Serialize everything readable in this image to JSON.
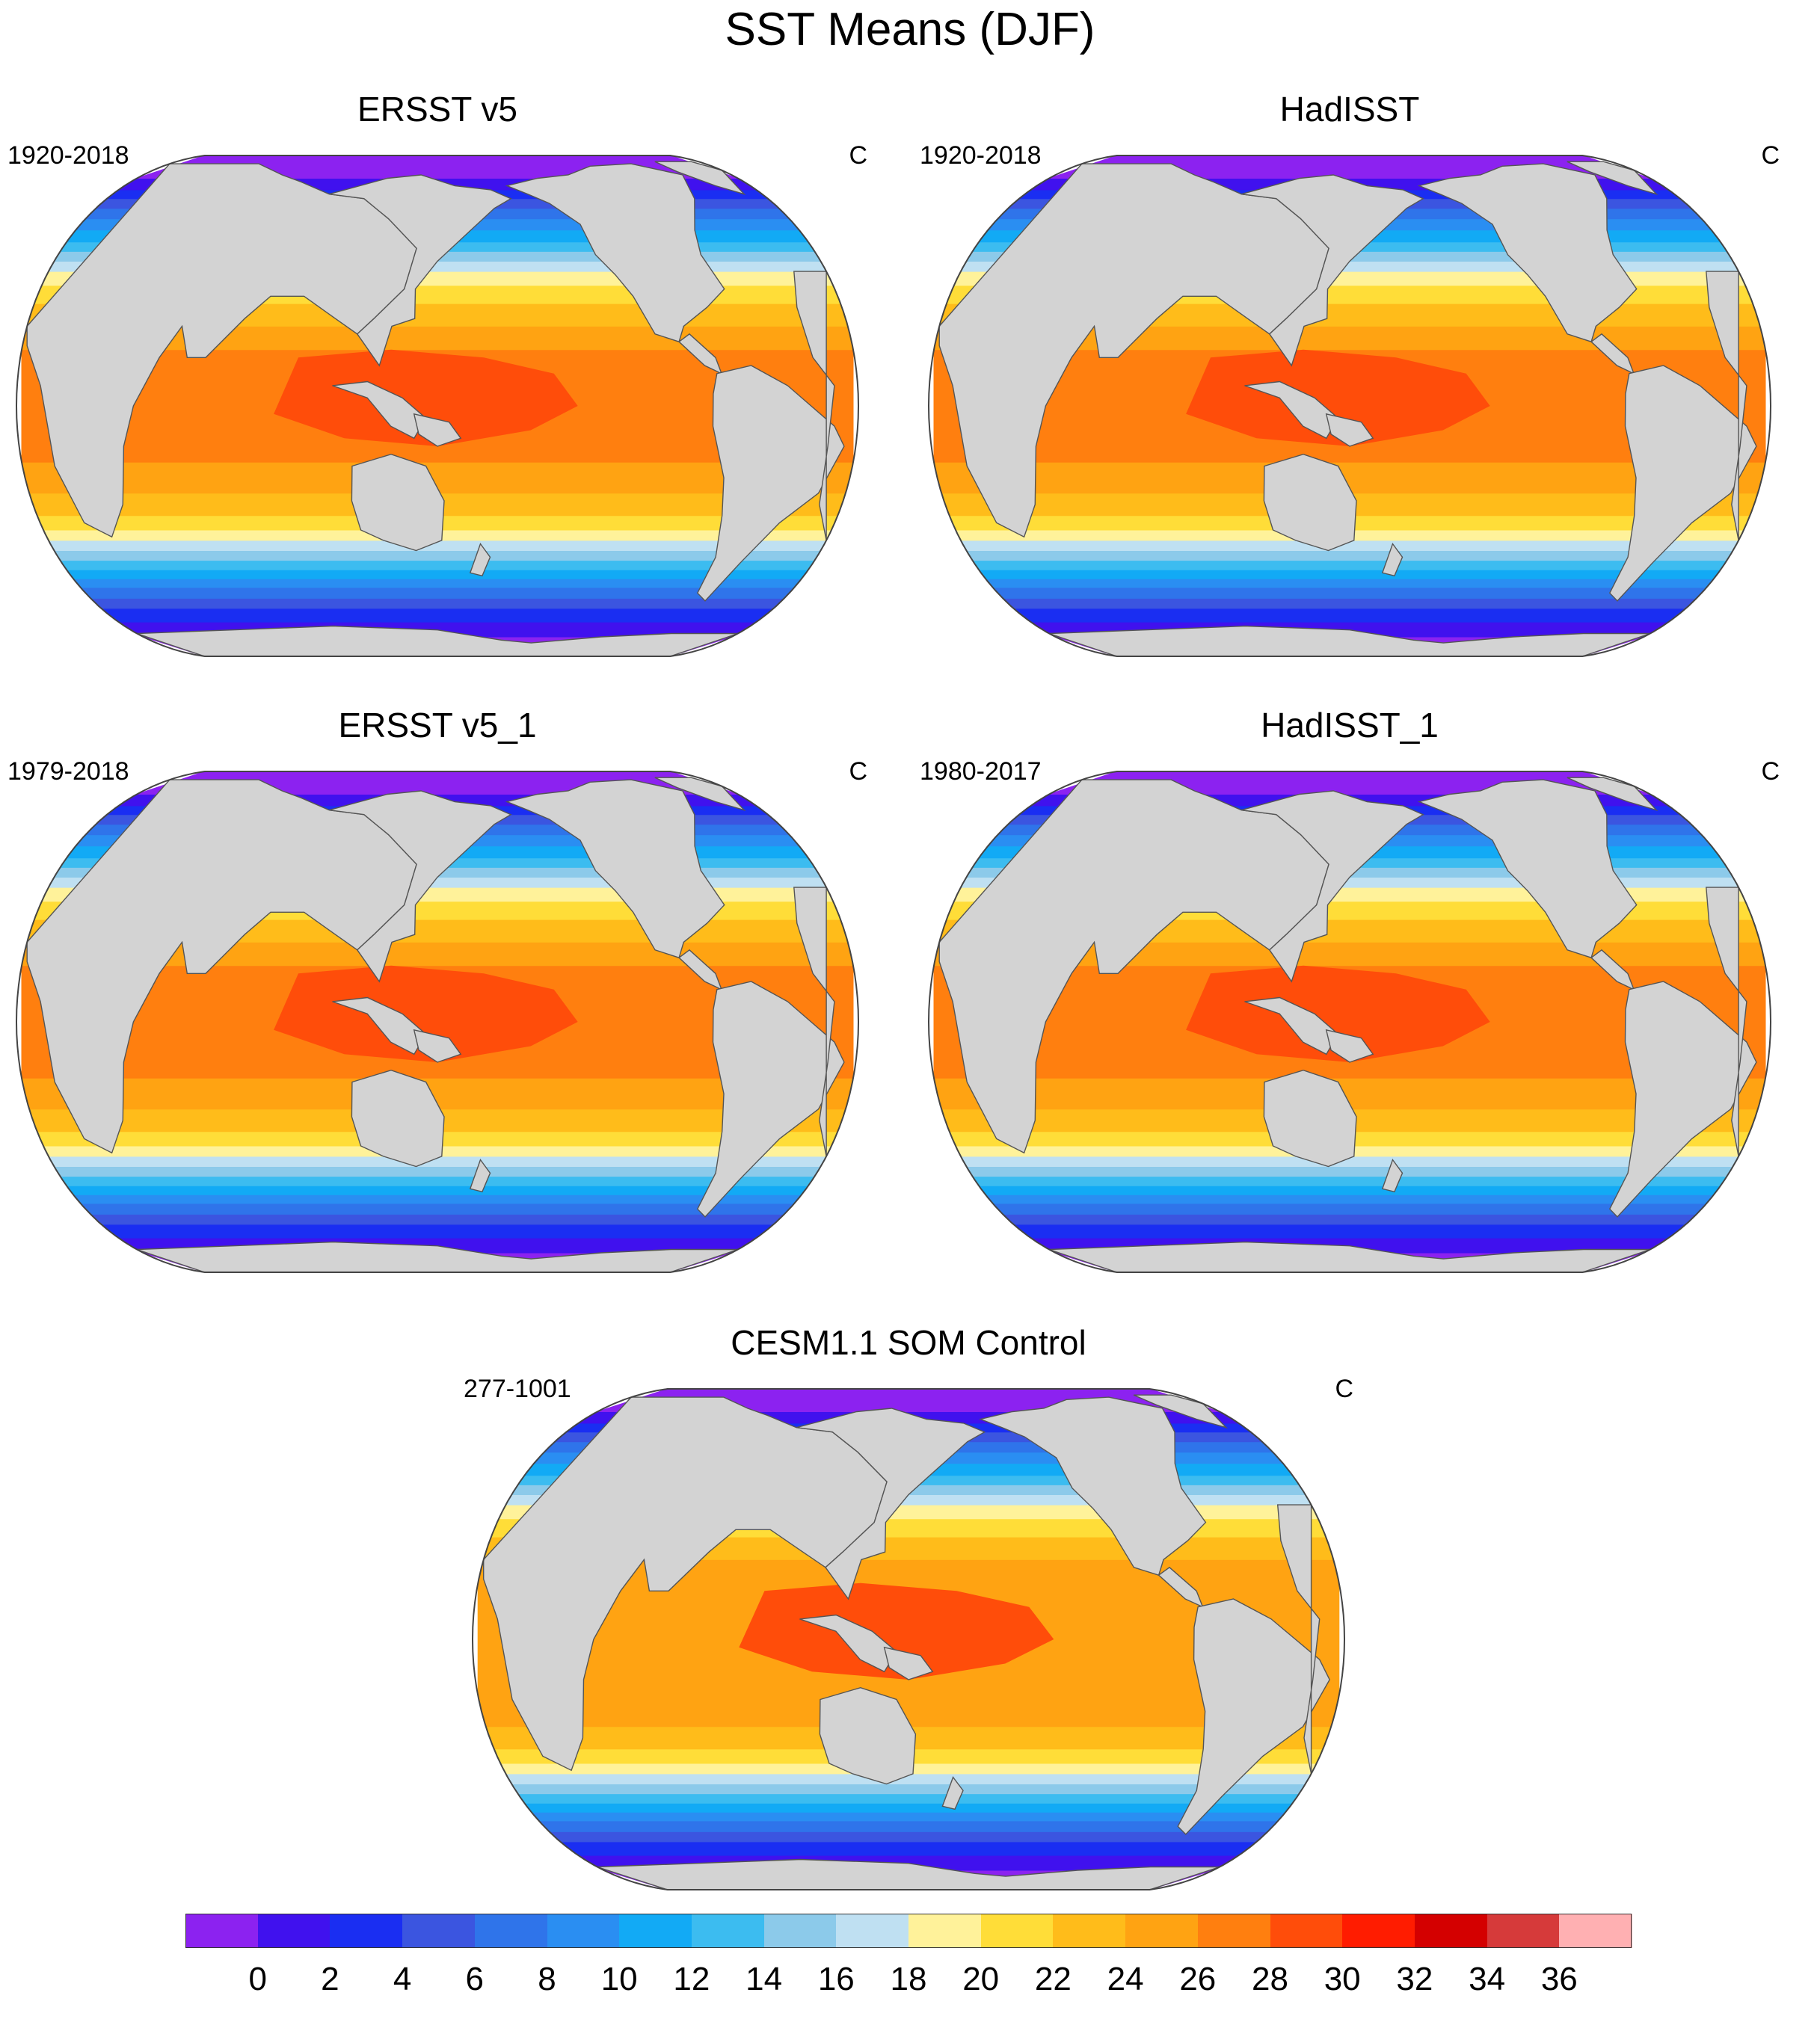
{
  "figure_title": "SST Means (DJF)",
  "panels": [
    {
      "title": "ERSST v5",
      "period": "1920-2018",
      "units": "C"
    },
    {
      "title": "HadISST",
      "period": "1920-2018",
      "units": "C"
    },
    {
      "title": "ERSST v5_1",
      "period": "1979-2018",
      "units": "C"
    },
    {
      "title": "HadISST_1",
      "period": "1980-2017",
      "units": "C"
    },
    {
      "title": "CESM1.1 SOM Control",
      "period": "277-1001",
      "units": "C"
    }
  ],
  "colorbar": {
    "labels": [
      "0",
      "2",
      "4",
      "6",
      "8",
      "10",
      "12",
      "14",
      "16",
      "18",
      "20",
      "22",
      "24",
      "26",
      "28",
      "30",
      "32",
      "34",
      "36"
    ],
    "colors": [
      "#8c22f0",
      "#4011ee",
      "#1a2ef2",
      "#3b55e0",
      "#2f74ea",
      "#2a8ef2",
      "#12aaf5",
      "#3cbcf0",
      "#8ccaea",
      "#bfe0f2",
      "#fff29a",
      "#ffdd38",
      "#ffbc1a",
      "#ffa312",
      "#ff7f0f",
      "#ff4d0a",
      "#ff1c00",
      "#d40000",
      "#d63a3a",
      "#ffb0b2"
    ]
  },
  "map_style": {
    "land": "#d3d3d3",
    "missing": "#ffffff",
    "outline": "#555555"
  }
}
